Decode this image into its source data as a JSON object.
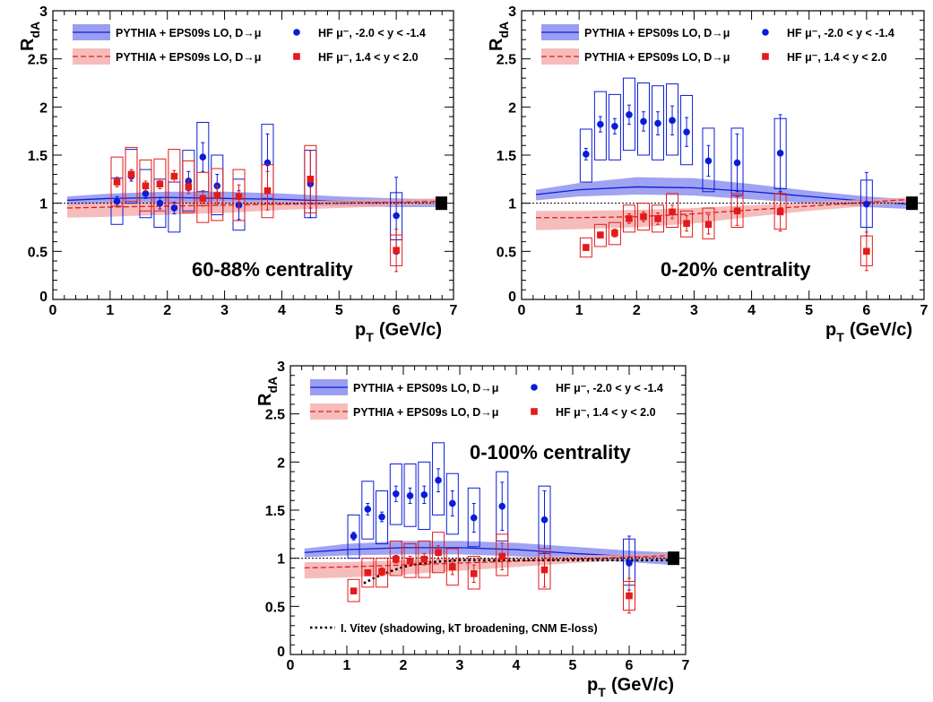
{
  "colors": {
    "blue": "#0a1cd9",
    "blue_band": "#8f93ee",
    "red": "#e41a1a",
    "red_band": "#f3a6a6",
    "black": "#000000"
  },
  "legend_entries": {
    "band_blue": "PYTHIA + EPS09s LO, D→μ",
    "band_red": "PYTHIA + EPS09s LO, D→μ",
    "marker_blue": "HF μ⁻, -2.0 < y < -1.4",
    "marker_red": "HF μ⁻,  1.4 < y < 2.0",
    "vitev": "I. Vitev (shadowing, kT broadening, CNM E-loss)"
  },
  "chart_data": [
    {
      "type": "scatter",
      "panel": "top-left",
      "title": "",
      "annotation": "60-88% centrality",
      "xlabel": "pT (GeV/c)",
      "ylabel": "RdA",
      "xlim": [
        0,
        7
      ],
      "ylim": [
        0,
        3
      ],
      "x_ticks": [
        0,
        1,
        2,
        3,
        4,
        5,
        6,
        7
      ],
      "y_ticks": [
        0.5,
        1,
        1.5,
        2,
        2.5,
        3
      ],
      "legend": "top-left",
      "series": [
        {
          "name": "HF μ⁻, -2.0 < y < -1.4",
          "marker": "circle",
          "x": [
            1.12,
            1.37,
            1.62,
            1.87,
            2.12,
            2.37,
            2.62,
            2.87,
            3.25,
            3.75,
            4.5,
            6.0
          ],
          "y": [
            1.02,
            1.28,
            1.1,
            1.0,
            0.95,
            1.23,
            1.48,
            1.18,
            0.98,
            1.42,
            1.2,
            0.87
          ],
          "stat_err": [
            0.05,
            0.05,
            0.05,
            0.06,
            0.06,
            0.1,
            0.15,
            0.12,
            0.15,
            0.3,
            0.35,
            0.4
          ],
          "sys_box": [
            [
              0.78,
              1.26
            ],
            [
              1.0,
              1.56
            ],
            [
              0.85,
              1.35
            ],
            [
              0.75,
              1.25
            ],
            [
              0.7,
              1.22
            ],
            [
              0.92,
              1.55
            ],
            [
              1.12,
              1.84
            ],
            [
              0.88,
              1.5
            ],
            [
              0.72,
              1.25
            ],
            [
              1.05,
              1.82
            ],
            [
              0.85,
              1.55
            ],
            [
              0.62,
              1.11
            ]
          ]
        },
        {
          "name": "HF μ⁻,  1.4 < y < 2.0",
          "marker": "square",
          "x": [
            1.12,
            1.37,
            1.62,
            1.87,
            2.12,
            2.37,
            2.62,
            2.87,
            3.25,
            3.75,
            4.5,
            6.0
          ],
          "y": [
            1.22,
            1.3,
            1.18,
            1.2,
            1.28,
            1.17,
            1.05,
            1.08,
            1.07,
            1.13,
            1.25,
            0.51
          ],
          "stat_err": [
            0.05,
            0.05,
            0.05,
            0.05,
            0.06,
            0.07,
            0.08,
            0.1,
            0.12,
            0.2,
            0.3,
            0.22
          ],
          "sys_box": [
            [
              0.97,
              1.48
            ],
            [
              1.02,
              1.58
            ],
            [
              0.92,
              1.45
            ],
            [
              0.92,
              1.46
            ],
            [
              1.0,
              1.56
            ],
            [
              0.9,
              1.44
            ],
            [
              0.8,
              1.32
            ],
            [
              0.82,
              1.36
            ],
            [
              0.82,
              1.35
            ],
            [
              0.85,
              1.4
            ],
            [
              0.9,
              1.6
            ],
            [
              0.35,
              0.67
            ]
          ]
        }
      ],
      "bands": [
        {
          "name": "PYTHIA + EPS09s LO, D→μ",
          "style": "blue-solid",
          "x": [
            0.25,
            1.0,
            2.0,
            3.0,
            4.0,
            5.0,
            6.0,
            6.75
          ],
          "center": [
            1.03,
            1.05,
            1.06,
            1.05,
            1.04,
            1.02,
            1.01,
            1.0
          ],
          "low": [
            0.98,
            1.0,
            1.0,
            0.99,
            0.98,
            0.97,
            0.96,
            0.96
          ],
          "high": [
            1.07,
            1.1,
            1.12,
            1.12,
            1.1,
            1.07,
            1.05,
            1.04
          ]
        },
        {
          "name": "PYTHIA + EPS09s LO, D→μ",
          "style": "red-dashed",
          "x": [
            0.25,
            1.0,
            2.0,
            3.0,
            4.0,
            5.0,
            6.0,
            6.75
          ],
          "center": [
            0.95,
            0.96,
            0.97,
            0.98,
            0.99,
            1.0,
            1.01,
            1.02
          ],
          "low": [
            0.85,
            0.86,
            0.88,
            0.9,
            0.93,
            0.95,
            0.97,
            0.99
          ],
          "high": [
            1.0,
            1.01,
            1.01,
            1.02,
            1.02,
            1.03,
            1.04,
            1.05
          ]
        }
      ],
      "norm_box": [
        0.93,
        1.07
      ]
    },
    {
      "type": "scatter",
      "panel": "top-right",
      "title": "",
      "annotation": "0-20% centrality",
      "xlabel": "pT (GeV/c)",
      "ylabel": "RdA",
      "xlim": [
        0,
        7
      ],
      "ylim": [
        0,
        3
      ],
      "x_ticks": [
        0,
        1,
        2,
        3,
        4,
        5,
        6,
        7
      ],
      "y_ticks": [
        0.5,
        1,
        1.5,
        2,
        2.5,
        3
      ],
      "legend": "top-left",
      "series": [
        {
          "name": "HF μ⁻, -2.0 < y < -1.4",
          "marker": "circle",
          "x": [
            1.12,
            1.37,
            1.62,
            1.87,
            2.12,
            2.37,
            2.62,
            2.87,
            3.25,
            3.75,
            4.5,
            6.0
          ],
          "y": [
            1.51,
            1.82,
            1.8,
            1.92,
            1.85,
            1.83,
            1.86,
            1.74,
            1.44,
            1.42,
            1.52,
            0.99
          ],
          "stat_err": [
            0.06,
            0.08,
            0.08,
            0.1,
            0.1,
            0.12,
            0.15,
            0.15,
            0.16,
            0.3,
            0.4,
            0.33
          ],
          "sys_box": [
            [
              1.22,
              1.77
            ],
            [
              1.45,
              2.16
            ],
            [
              1.45,
              2.13
            ],
            [
              1.55,
              2.3
            ],
            [
              1.5,
              2.25
            ],
            [
              1.45,
              2.22
            ],
            [
              1.5,
              2.24
            ],
            [
              1.4,
              2.12
            ],
            [
              1.12,
              1.78
            ],
            [
              1.08,
              1.78
            ],
            [
              1.15,
              1.88
            ],
            [
              0.75,
              1.24
            ]
          ]
        },
        {
          "name": "HF μ⁻,  1.4 < y < 2.0",
          "marker": "square",
          "x": [
            1.12,
            1.37,
            1.62,
            1.87,
            2.12,
            2.37,
            2.62,
            2.87,
            3.25,
            3.75,
            4.5,
            6.0
          ],
          "y": [
            0.54,
            0.67,
            0.69,
            0.84,
            0.86,
            0.84,
            0.91,
            0.79,
            0.78,
            0.92,
            0.91,
            0.5
          ],
          "stat_err": [
            0.03,
            0.03,
            0.04,
            0.05,
            0.05,
            0.06,
            0.07,
            0.08,
            0.1,
            0.15,
            0.2,
            0.2
          ],
          "sys_box": [
            [
              0.44,
              0.64
            ],
            [
              0.55,
              0.78
            ],
            [
              0.57,
              0.8
            ],
            [
              0.7,
              0.98
            ],
            [
              0.72,
              1.0
            ],
            [
              0.7,
              0.98
            ],
            [
              0.75,
              1.1
            ],
            [
              0.65,
              0.92
            ],
            [
              0.63,
              0.95
            ],
            [
              0.75,
              1.1
            ],
            [
              0.73,
              1.1
            ],
            [
              0.35,
              0.66
            ]
          ]
        }
      ],
      "bands": [
        {
          "name": "PYTHIA + EPS09s LO, D→μ",
          "style": "blue-solid",
          "x": [
            0.25,
            1.0,
            2.0,
            3.0,
            4.0,
            5.0,
            6.0,
            6.75
          ],
          "center": [
            1.09,
            1.14,
            1.17,
            1.16,
            1.12,
            1.07,
            1.02,
            0.99
          ],
          "low": [
            1.03,
            1.07,
            1.09,
            1.08,
            1.04,
            1.0,
            0.96,
            0.94
          ],
          "high": [
            1.14,
            1.21,
            1.27,
            1.26,
            1.2,
            1.13,
            1.07,
            1.04
          ]
        },
        {
          "name": "PYTHIA + EPS09s LO, D→μ",
          "style": "red-dashed",
          "x": [
            0.25,
            1.0,
            2.0,
            3.0,
            4.0,
            5.0,
            6.0,
            6.75
          ],
          "center": [
            0.85,
            0.85,
            0.86,
            0.89,
            0.93,
            0.97,
            1.01,
            1.04
          ],
          "low": [
            0.72,
            0.73,
            0.75,
            0.79,
            0.86,
            0.92,
            0.97,
            1.01
          ],
          "high": [
            0.92,
            0.92,
            0.93,
            0.95,
            0.98,
            1.01,
            1.04,
            1.06
          ]
        }
      ],
      "norm_box": [
        0.93,
        1.07
      ]
    },
    {
      "type": "scatter",
      "panel": "bottom-center",
      "title": "",
      "annotation": "0-100% centrality",
      "xlabel": "pT (GeV/c)",
      "ylabel": "RdA",
      "xlim": [
        0,
        7
      ],
      "ylim": [
        0,
        3
      ],
      "x_ticks": [
        0,
        1,
        2,
        3,
        4,
        5,
        6,
        7
      ],
      "y_ticks": [
        0.5,
        1,
        1.5,
        2,
        2.5,
        3
      ],
      "legend": "top-left",
      "series": [
        {
          "name": "HF μ⁻, -2.0 < y < -1.4",
          "marker": "circle",
          "x": [
            1.12,
            1.37,
            1.62,
            1.87,
            2.12,
            2.37,
            2.62,
            2.87,
            3.25,
            3.75,
            4.5,
            6.0
          ],
          "y": [
            1.23,
            1.51,
            1.43,
            1.67,
            1.65,
            1.66,
            1.81,
            1.57,
            1.42,
            1.54,
            1.4,
            0.95
          ],
          "stat_err": [
            0.04,
            0.06,
            0.05,
            0.08,
            0.08,
            0.09,
            0.12,
            0.13,
            0.15,
            0.25,
            0.3,
            0.28
          ],
          "sys_box": [
            [
              1.0,
              1.45
            ],
            [
              1.2,
              1.8
            ],
            [
              1.15,
              1.7
            ],
            [
              1.35,
              1.98
            ],
            [
              1.33,
              1.98
            ],
            [
              1.3,
              2.0
            ],
            [
              1.45,
              2.2
            ],
            [
              1.25,
              1.88
            ],
            [
              1.12,
              1.73
            ],
            [
              1.18,
              1.9
            ],
            [
              1.05,
              1.75
            ],
            [
              0.72,
              1.2
            ]
          ]
        },
        {
          "name": "HF μ⁻,  1.4 < y < 2.0",
          "marker": "square",
          "x": [
            1.12,
            1.37,
            1.62,
            1.87,
            2.12,
            2.37,
            2.62,
            2.87,
            3.25,
            3.75,
            4.5,
            6.0
          ],
          "y": [
            0.66,
            0.85,
            0.86,
            0.99,
            0.97,
            0.99,
            1.06,
            0.91,
            0.84,
            1.02,
            0.88,
            0.61
          ],
          "stat_err": [
            0.03,
            0.03,
            0.04,
            0.04,
            0.05,
            0.06,
            0.07,
            0.08,
            0.09,
            0.14,
            0.18,
            0.18
          ],
          "sys_box": [
            [
              0.55,
              0.78
            ],
            [
              0.7,
              1.0
            ],
            [
              0.7,
              1.0
            ],
            [
              0.82,
              1.18
            ],
            [
              0.8,
              1.15
            ],
            [
              0.8,
              1.18
            ],
            [
              0.85,
              1.27
            ],
            [
              0.72,
              1.1
            ],
            [
              0.68,
              1.02
            ],
            [
              0.82,
              1.25
            ],
            [
              0.68,
              1.1
            ],
            [
              0.46,
              0.76
            ]
          ]
        }
      ],
      "bands": [
        {
          "name": "PYTHIA + EPS09s LO, D→μ",
          "style": "blue-solid",
          "x": [
            0.25,
            1.0,
            2.0,
            3.0,
            4.0,
            5.0,
            6.0,
            6.75
          ],
          "center": [
            1.06,
            1.09,
            1.11,
            1.11,
            1.09,
            1.05,
            1.02,
            1.0
          ],
          "low": [
            1.01,
            1.03,
            1.04,
            1.04,
            1.02,
            0.99,
            0.96,
            0.93
          ],
          "high": [
            1.1,
            1.15,
            1.18,
            1.18,
            1.16,
            1.12,
            1.08,
            1.06
          ]
        },
        {
          "name": "PYTHIA + EPS09s LO, D→μ",
          "style": "red-dashed",
          "x": [
            0.25,
            1.0,
            2.0,
            3.0,
            4.0,
            5.0,
            6.0,
            6.75
          ],
          "center": [
            0.9,
            0.91,
            0.93,
            0.95,
            0.97,
            0.99,
            1.01,
            1.03
          ],
          "low": [
            0.79,
            0.8,
            0.83,
            0.87,
            0.91,
            0.95,
            0.98,
            1.0
          ],
          "high": [
            0.96,
            0.96,
            0.98,
            1.0,
            1.01,
            1.03,
            1.04,
            1.05
          ]
        }
      ],
      "curve": {
        "name": "I. Vitev (shadowing, kT broadening, CNM E-loss)",
        "style": "black-dotted",
        "x": [
          1.3,
          1.5,
          1.75,
          2.0,
          2.25,
          2.5,
          2.75,
          3.0,
          3.5,
          4.0,
          5.0,
          6.0,
          6.75
        ],
        "y": [
          0.74,
          0.8,
          0.86,
          0.91,
          0.94,
          0.96,
          0.97,
          0.98,
          0.98,
          0.98,
          0.98,
          0.98,
          0.98
        ]
      },
      "norm_box": [
        0.93,
        1.07
      ]
    }
  ]
}
